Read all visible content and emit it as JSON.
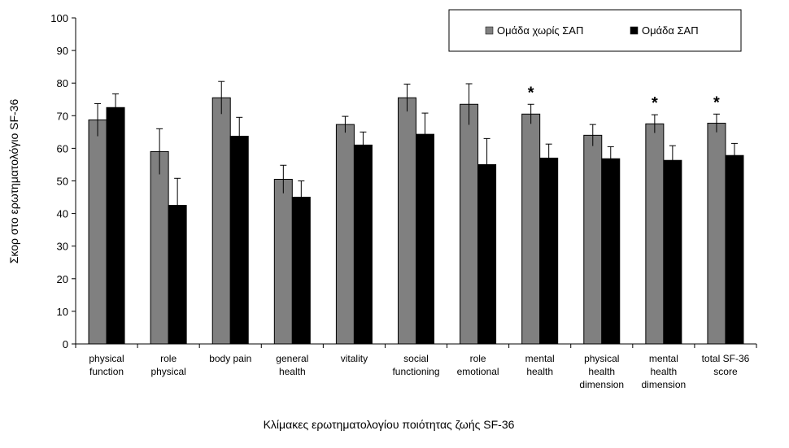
{
  "chart_data": {
    "type": "bar",
    "xlabel": "Κλίμακες ερωτηματολογίου ποιότητας ζωής SF-36",
    "ylabel": "Σκορ στο ερωτηματολόγιο SF-36",
    "ylim": [
      0,
      100
    ],
    "yticks": [
      0,
      10,
      20,
      30,
      40,
      50,
      60,
      70,
      80,
      90,
      100
    ],
    "grid": false,
    "legend_position": "top-right",
    "categories": [
      [
        "physical",
        "function"
      ],
      [
        "role",
        "physical"
      ],
      [
        "body pain"
      ],
      [
        "general",
        "health"
      ],
      [
        "vitality"
      ],
      [
        "social",
        "functioning"
      ],
      [
        "role",
        "emotional"
      ],
      [
        "mental",
        "health"
      ],
      [
        "physical",
        "health",
        "dimension"
      ],
      [
        "mental",
        "health",
        "dimension"
      ],
      [
        "total SF-36",
        "score"
      ]
    ],
    "series": [
      {
        "name": "Ομάδα χωρίς ΣΑΠ",
        "color": "#808080",
        "values": [
          68.7,
          59.0,
          75.5,
          50.5,
          67.3,
          75.5,
          73.5,
          70.5,
          64.0,
          67.5,
          67.7
        ],
        "errors": [
          5.0,
          7.0,
          5.0,
          4.3,
          2.5,
          4.2,
          6.3,
          3.0,
          3.3,
          2.8,
          2.8
        ]
      },
      {
        "name": "Ομάδα ΣΑΠ",
        "color": "#000000",
        "values": [
          72.5,
          42.5,
          63.7,
          45.0,
          61.0,
          64.3,
          55.0,
          57.0,
          56.8,
          56.3,
          57.8
        ],
        "errors": [
          4.2,
          8.3,
          5.8,
          5.0,
          4.0,
          6.5,
          8.0,
          4.3,
          3.7,
          4.5,
          3.7
        ]
      }
    ],
    "significance_marker": "*",
    "significant_categories": [
      7,
      9,
      10
    ]
  }
}
